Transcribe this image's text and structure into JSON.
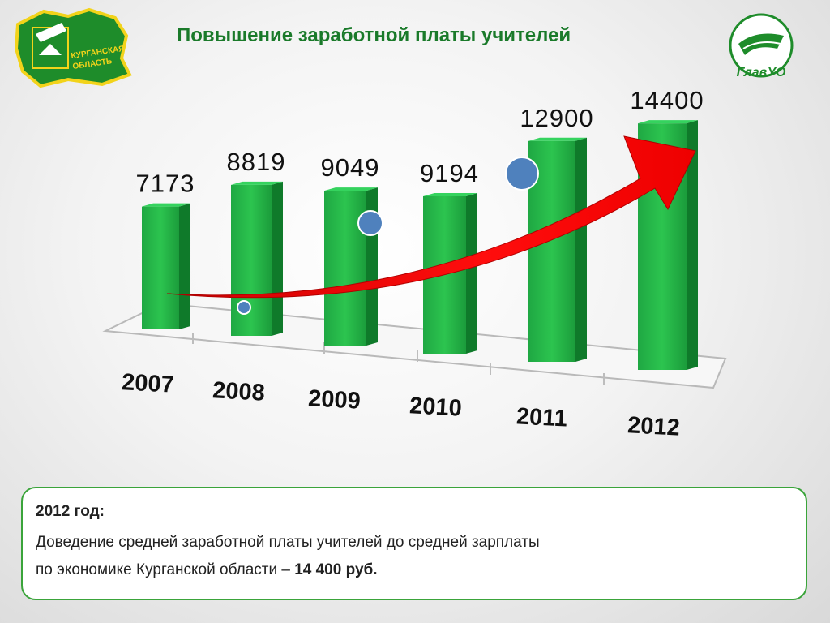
{
  "header": {
    "title": "Повышение заработной платы учителей",
    "left_logo_text": [
      "КУРГАНСКАЯ",
      "ОБЛАСТЬ"
    ],
    "right_logo_text": "ГлавУО"
  },
  "chart_data": {
    "type": "bar",
    "categories": [
      "2007",
      "2008",
      "2009",
      "2010",
      "2011",
      "2012"
    ],
    "values": [
      7173,
      8819,
      9049,
      9194,
      12900,
      14400
    ],
    "data_labels": [
      "7173",
      "8819",
      "9049",
      "9194",
      "12900",
      "14400"
    ],
    "title": "",
    "xlabel": "",
    "ylabel": "",
    "ylim": [
      0,
      15000
    ],
    "grid": false,
    "bar_color": "#22b14c",
    "trend_arrow_color": "#ee0000",
    "marker_color": "#4f81bd"
  },
  "info_box": {
    "year": "2012 год:",
    "line1": "Доведение средней заработной платы учителей до средней зарплаты",
    "line2_prefix": "по экономике Курганской области – ",
    "line2_value": "14 400 руб."
  }
}
